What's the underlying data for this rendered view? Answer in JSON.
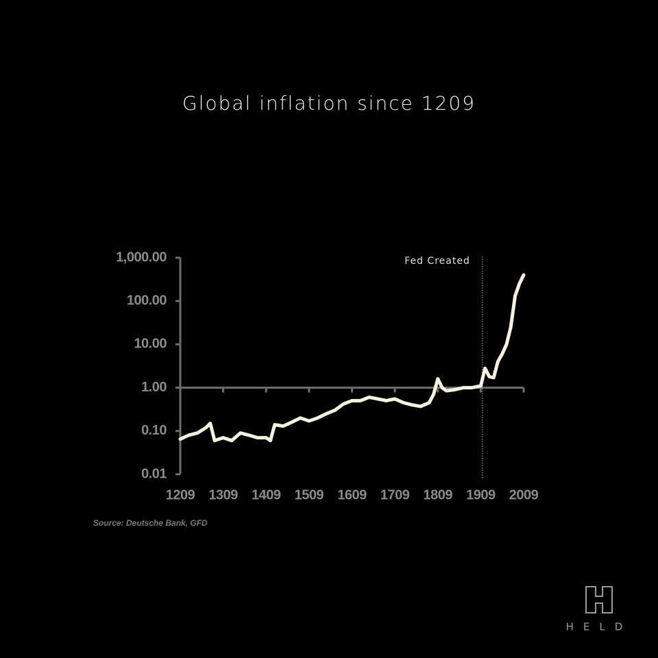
{
  "chart_data": {
    "type": "line",
    "title": "Global inflation since 1209",
    "source": "Source: Deutsche Bank, GFD",
    "log_scale": true,
    "x_axis_at": 1,
    "xlim": [
      1209,
      2009
    ],
    "xticks": [
      1209,
      1309,
      1409,
      1509,
      1609,
      1709,
      1809,
      1909,
      2009
    ],
    "ylim": [
      0.01,
      1000
    ],
    "yticks": [
      {
        "value": 1000,
        "label": "1,000.00"
      },
      {
        "value": 100,
        "label": "100.00"
      },
      {
        "value": 10,
        "label": "10.00"
      },
      {
        "value": 1,
        "label": "1.00"
      },
      {
        "value": 0.1,
        "label": "0.10"
      },
      {
        "value": 0.01,
        "label": "0.01"
      }
    ],
    "annotation": {
      "text": "Fed Created",
      "x": 1913
    },
    "x": [
      1209,
      1229,
      1249,
      1269,
      1279,
      1289,
      1309,
      1329,
      1349,
      1369,
      1389,
      1409,
      1419,
      1429,
      1449,
      1469,
      1489,
      1509,
      1529,
      1549,
      1569,
      1589,
      1609,
      1629,
      1649,
      1669,
      1689,
      1709,
      1729,
      1749,
      1769,
      1789,
      1799,
      1809,
      1819,
      1829,
      1849,
      1869,
      1889,
      1909,
      1919,
      1929,
      1939,
      1949,
      1959,
      1969,
      1979,
      1989,
      1999,
      2009
    ],
    "series": [
      {
        "color": "#f5f2e0",
        "values": [
          0.065,
          0.08,
          0.09,
          0.12,
          0.15,
          0.06,
          0.07,
          0.06,
          0.09,
          0.08,
          0.07,
          0.07,
          0.06,
          0.14,
          0.13,
          0.16,
          0.2,
          0.17,
          0.2,
          0.25,
          0.3,
          0.42,
          0.5,
          0.5,
          0.6,
          0.55,
          0.5,
          0.55,
          0.45,
          0.4,
          0.37,
          0.45,
          0.7,
          1.6,
          1.0,
          0.85,
          0.9,
          1.0,
          1.0,
          1.1,
          2.8,
          1.8,
          1.7,
          4,
          6,
          10,
          25,
          130,
          250,
          400
        ]
      }
    ]
  },
  "logo": "HELD"
}
